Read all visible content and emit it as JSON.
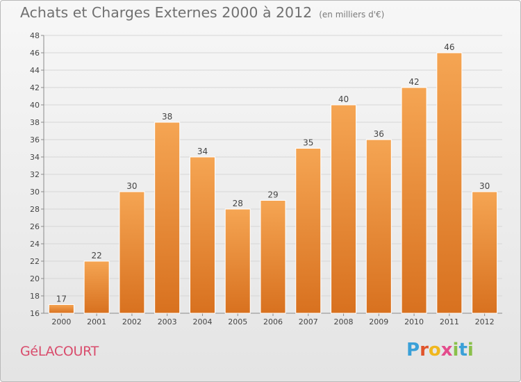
{
  "header": {
    "title": "Achats et Charges Externes 2000 à 2012",
    "subtitle": "(en milliers d'€)"
  },
  "footer": {
    "commune": "GéLACOURT",
    "logo_letters": [
      "P",
      "r",
      "o",
      "x",
      "i",
      "t",
      "i"
    ]
  },
  "colors": {
    "bar_top": "#f5a553",
    "bar_bottom": "#d8711f",
    "bar_edge": "#ffffff",
    "grid": "#d6d6d6",
    "axis": "#8a8a8a",
    "label": "#444444",
    "commune": "#d94c6c"
  },
  "chart_data": {
    "type": "bar",
    "title": "Achats et Charges Externes 2000 à 2012",
    "subtitle": "(en milliers d'€)",
    "categories": [
      "2000",
      "2001",
      "2002",
      "2003",
      "2004",
      "2005",
      "2006",
      "2007",
      "2008",
      "2009",
      "2010",
      "2011",
      "2012"
    ],
    "values": [
      17,
      22,
      30,
      38,
      34,
      28,
      29,
      35,
      40,
      36,
      42,
      46,
      30
    ],
    "ylim": [
      16,
      48
    ],
    "yticks": [
      16,
      18,
      20,
      22,
      24,
      26,
      28,
      30,
      32,
      34,
      36,
      38,
      40,
      42,
      44,
      46,
      48
    ],
    "grid": true,
    "data_labels": true
  }
}
